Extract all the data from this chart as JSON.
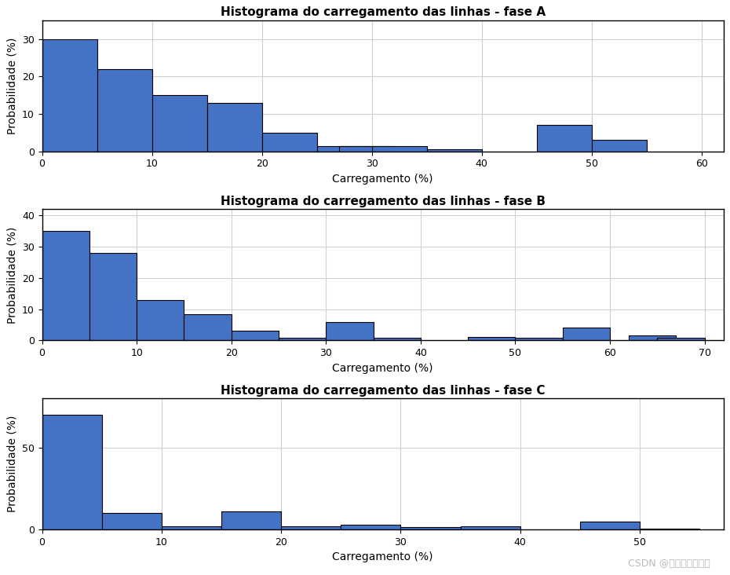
{
  "titles": [
    "Histograma do carregamento das linhas - fase A",
    "Histograma do carregamento das linhas - fase B",
    "Histograma do carregamento das linhas - fase C"
  ],
  "xlabel": "Carregamento (%)",
  "ylabel": "Probabilidade (%)",
  "bar_color": "#4472C4",
  "bar_edge_color": "#000000",
  "background_color": "#ffffff",
  "watermark": "CSDN @电气工程研习社",
  "phase_A": {
    "bin_left": [
      0,
      5,
      10,
      15,
      20,
      25,
      27,
      29,
      32,
      37,
      45,
      52
    ],
    "heights": [
      30,
      22,
      15,
      13,
      5,
      1.5,
      1.5,
      0.5,
      1.5,
      0.5,
      7,
      3
    ],
    "bin_width": [
      5,
      5,
      5,
      5,
      5,
      2,
      2,
      3,
      5,
      5,
      5,
      5
    ],
    "xlim": [
      -1,
      62
    ],
    "xticks": [
      0,
      10,
      20,
      30,
      40,
      50,
      60
    ],
    "ylim": [
      0,
      35
    ],
    "yticks": [
      0,
      10,
      20,
      30
    ]
  },
  "phase_B": {
    "bin_left": [
      0,
      5,
      10,
      15,
      20,
      25,
      27,
      30,
      35,
      45,
      48,
      55,
      62,
      65
    ],
    "heights": [
      35,
      28,
      13,
      8.5,
      3,
      0.5,
      0.5,
      6,
      0.5,
      1.0,
      0.5,
      4,
      1.5,
      0.8
    ],
    "bin_width": [
      5,
      5,
      5,
      5,
      5,
      2,
      3,
      5,
      5,
      3,
      5,
      5,
      3,
      5
    ],
    "xlim": [
      -1,
      72
    ],
    "xticks": [
      0,
      10,
      20,
      30,
      40,
      50,
      60,
      70
    ],
    "ylim": [
      0,
      42
    ],
    "yticks": [
      0,
      10,
      20,
      30,
      40
    ]
  },
  "phase_C": {
    "bin_left": [
      0,
      5,
      8,
      12,
      15,
      22,
      27,
      33,
      38,
      45,
      48
    ],
    "heights": [
      70,
      10,
      2,
      11,
      2,
      3,
      1.5,
      2,
      1,
      5,
      0.5
    ],
    "bin_width": [
      5,
      5,
      4,
      5,
      5,
      5,
      4,
      5,
      5,
      5,
      4
    ],
    "xlim": [
      -1,
      57
    ],
    "xticks": [
      0,
      10,
      20,
      30,
      40,
      50
    ],
    "ylim": [
      0,
      80
    ],
    "yticks": [
      0,
      50
    ]
  }
}
